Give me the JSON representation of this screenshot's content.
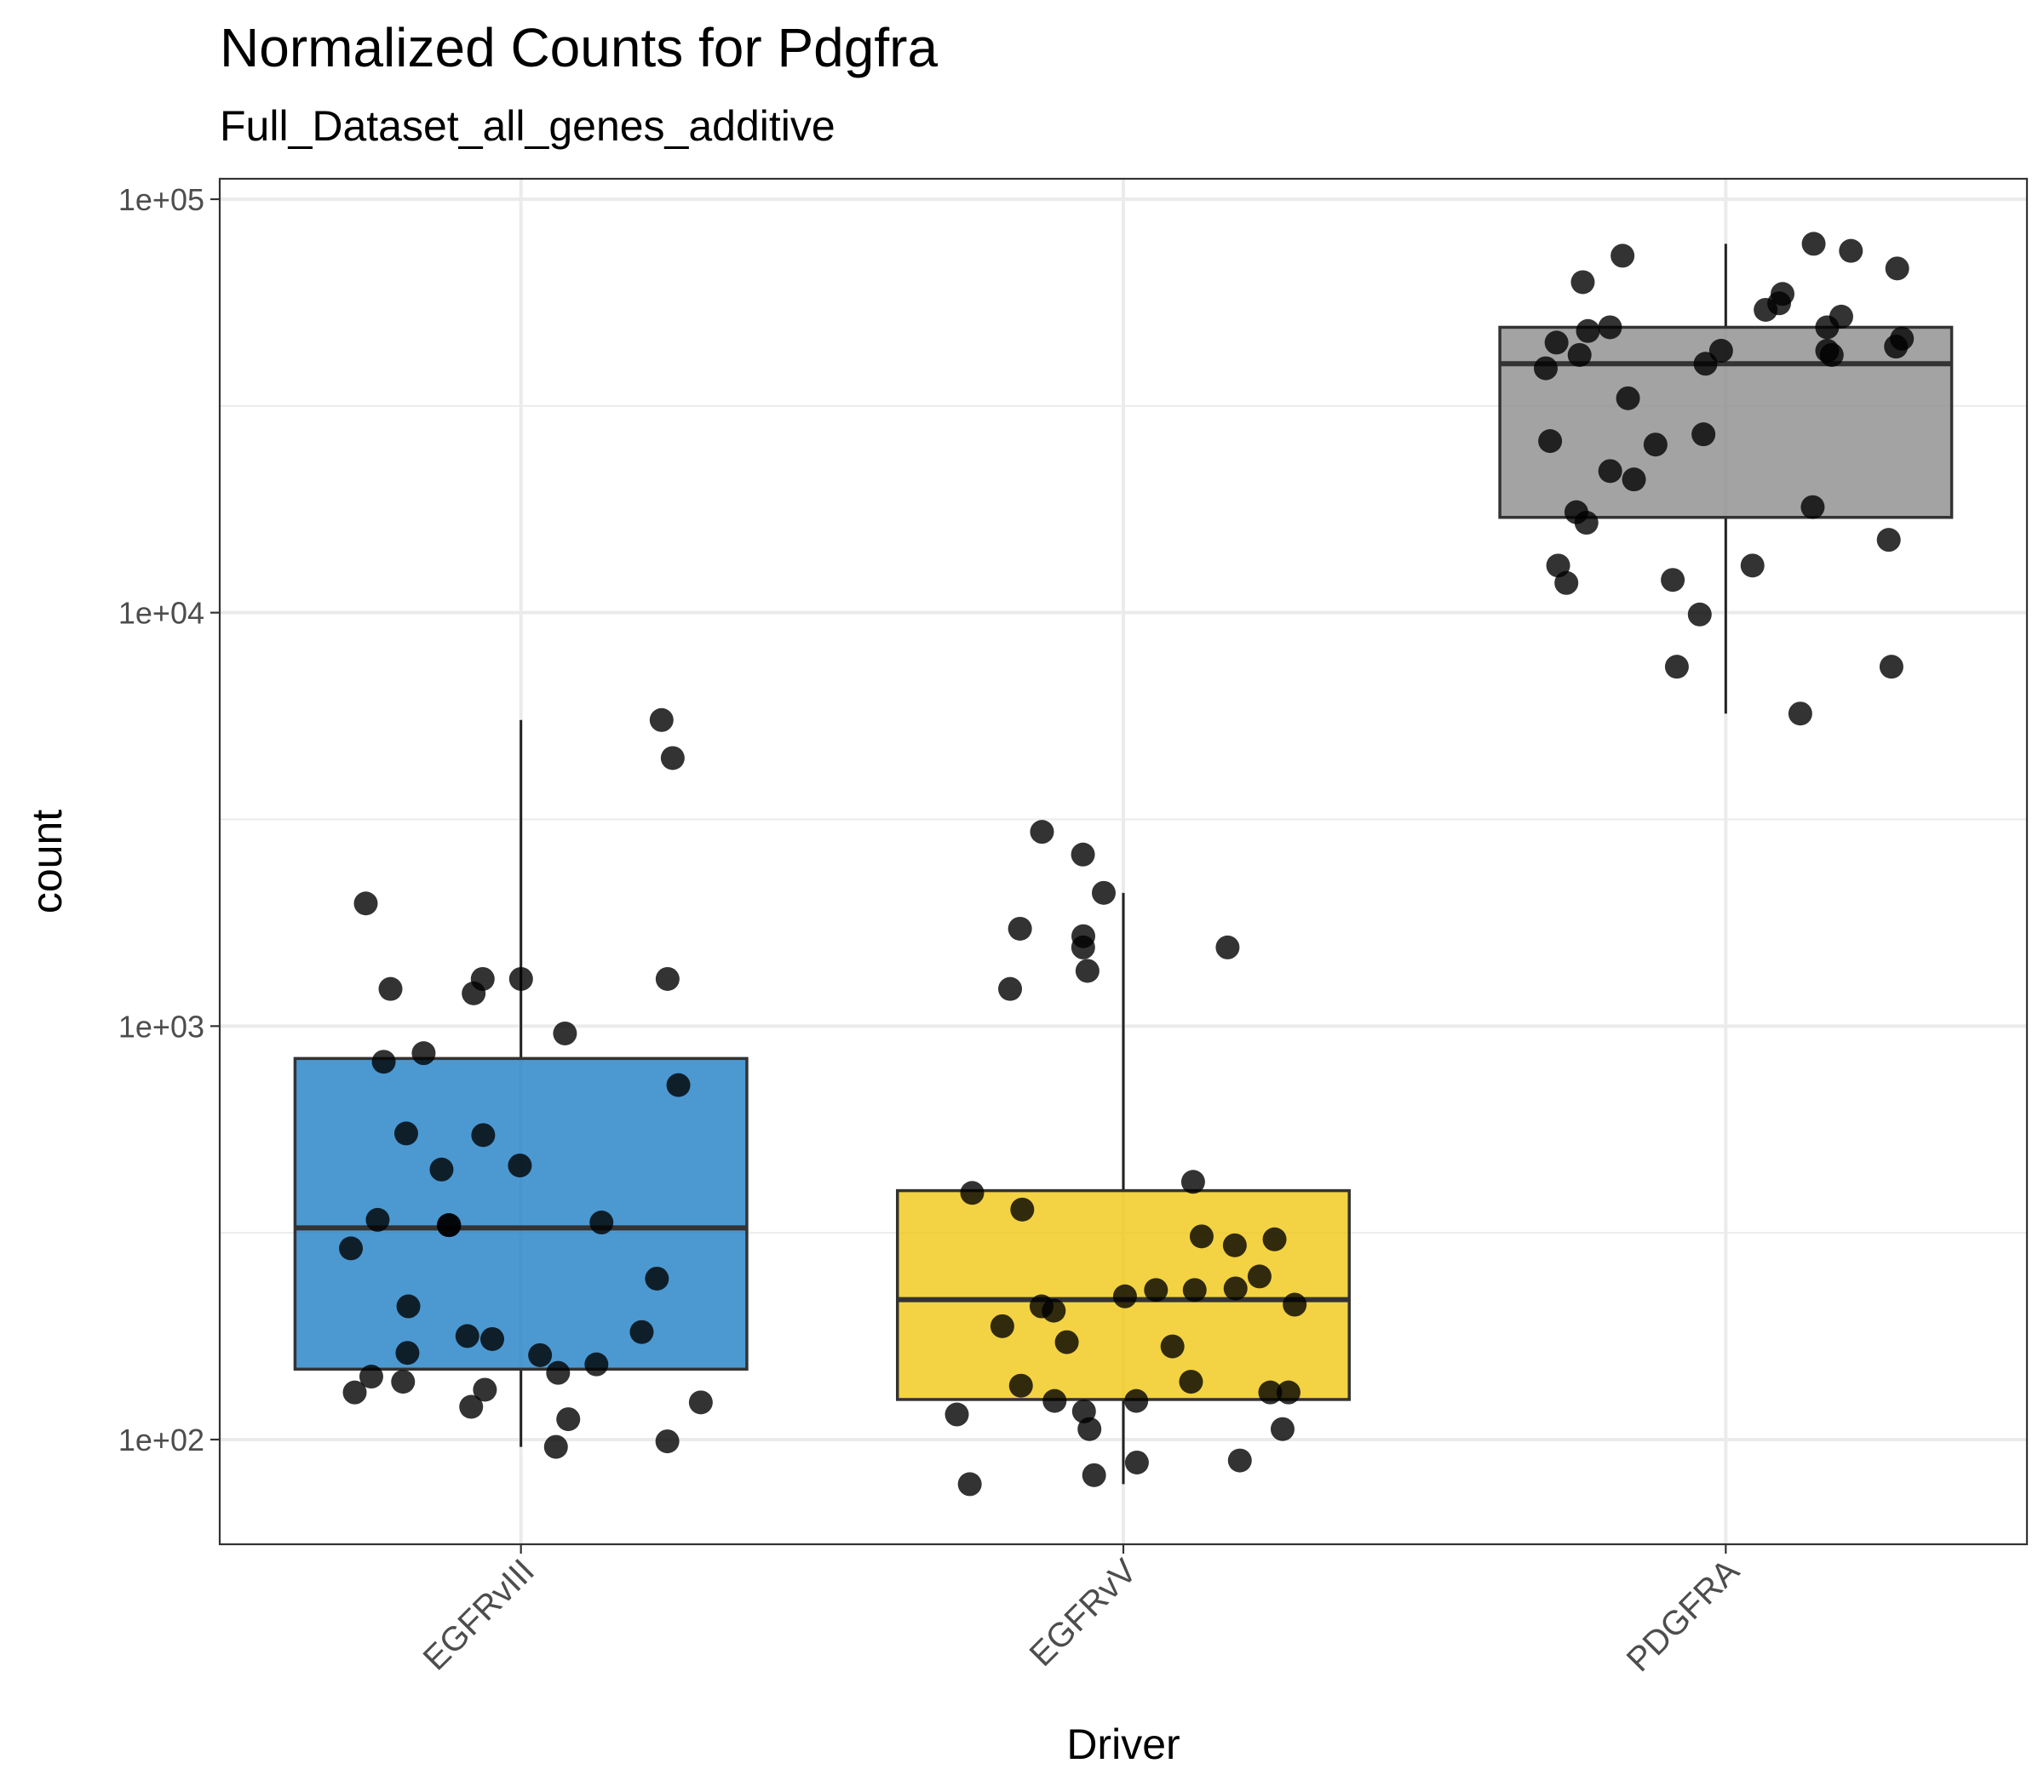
{
  "chart_data": {
    "type": "boxplot",
    "title": "Normalized Counts for Pdgfra",
    "subtitle": "Full_Dataset_all_genes_additive",
    "xlabel": "Driver",
    "ylabel": "count",
    "yscale": "log10",
    "ylim": [
      55,
      115000
    ],
    "yticks": [
      {
        "value": 100,
        "label": "1e+02"
      },
      {
        "value": 1000,
        "label": "1e+03"
      },
      {
        "value": 10000,
        "label": "1e+04"
      },
      {
        "value": 100000,
        "label": "1e+05"
      }
    ],
    "categories": [
      "EGFRvIII",
      "EGFRvV",
      "PDGFRA"
    ],
    "boxes": [
      {
        "name": "EGFRvIII",
        "color": "#1f7fc7",
        "q1": 148,
        "median": 325,
        "q3": 835,
        "whisker_low": 96,
        "whisker_high": 5500
      },
      {
        "name": "EGFRvV",
        "color": "#f0c814",
        "q1": 125,
        "median": 218,
        "q3": 400,
        "whisker_low": 78,
        "whisker_high": 2100
      },
      {
        "name": "PDGFRA",
        "color": "#8c8c8c",
        "q1": 17000,
        "median": 40000,
        "q3": 49000,
        "whisker_low": 5700,
        "whisker_high": 78000
      }
    ],
    "points": [
      {
        "category": "EGFRvIII",
        "values": [
          5500,
          4450,
          1980,
          1300,
          1300,
          1230,
          1200,
          1300,
          960,
          860,
          820,
          720,
          545,
          550,
          460,
          450,
          340,
          335,
          330,
          330,
          290,
          245,
          210,
          182,
          175,
          162,
          160,
          178,
          152,
          145,
          142,
          138,
          132,
          130,
          123,
          120,
          112,
          96,
          99
        ]
      },
      {
        "category": "EGFRvV",
        "values": [
          2950,
          2600,
          2100,
          1550,
          1550,
          1360,
          1650,
          1720,
          1230,
          420,
          395,
          360,
          310,
          295,
          305,
          248,
          232,
          230,
          230,
          222,
          212,
          210,
          205,
          188,
          172,
          168,
          138,
          135,
          130,
          130,
          124,
          124,
          117,
          115,
          106,
          106,
          89,
          88,
          82,
          78
        ]
      },
      {
        "category": "PDGFRA",
        "values": [
          78000,
          75000,
          73000,
          68000,
          63000,
          59000,
          56000,
          54000,
          52000,
          49000,
          49000,
          48000,
          46000,
          45000,
          44000,
          43000,
          43000,
          42000,
          42000,
          40000,
          39000,
          33000,
          27000,
          26000,
          25500,
          22000,
          21000,
          18000,
          17500,
          16500,
          15000,
          13000,
          13000,
          12000,
          11800,
          9900,
          7400,
          7400,
          5700
        ]
      }
    ]
  }
}
